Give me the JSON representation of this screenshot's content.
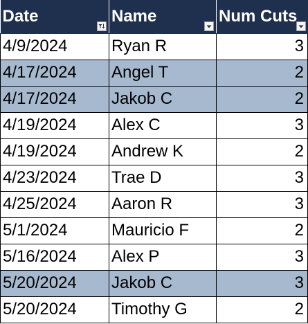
{
  "table": {
    "headers": [
      {
        "label": "Date",
        "filter_icon": "sort-filter-icon"
      },
      {
        "label": "Name",
        "filter_icon": "filter-dropdown-icon"
      },
      {
        "label": "Num Cuts",
        "filter_icon": "filter-dropdown-icon"
      }
    ],
    "rows": [
      {
        "date": "4/9/2024",
        "name": "Ryan R",
        "cuts": "3",
        "highlighted": false
      },
      {
        "date": "4/17/2024",
        "name": "Angel T",
        "cuts": "2",
        "highlighted": true
      },
      {
        "date": "4/17/2024",
        "name": "Jakob C",
        "cuts": "2",
        "highlighted": true
      },
      {
        "date": "4/19/2024",
        "name": "Alex C",
        "cuts": "3",
        "highlighted": false
      },
      {
        "date": "4/19/2024",
        "name": "Andrew K",
        "cuts": "2",
        "highlighted": false
      },
      {
        "date": "4/23/2024",
        "name": "Trae D",
        "cuts": "3",
        "highlighted": false
      },
      {
        "date": "4/25/2024",
        "name": "Aaron R",
        "cuts": "3",
        "highlighted": false
      },
      {
        "date": "5/1/2024",
        "name": "Mauricio F",
        "cuts": "2",
        "highlighted": false
      },
      {
        "date": "5/16/2024",
        "name": "Alex P",
        "cuts": "3",
        "highlighted": false
      },
      {
        "date": "5/20/2024",
        "name": "Jakob C",
        "cuts": "3",
        "highlighted": true
      },
      {
        "date": "5/20/2024",
        "name": "Timothy G",
        "cuts": "2",
        "highlighted": false
      }
    ]
  },
  "colors": {
    "header_bg": "#1f2f4e",
    "header_text": "#ffffff",
    "highlight_row_bg": "#a6b9cf",
    "grid_line": "#000000"
  }
}
